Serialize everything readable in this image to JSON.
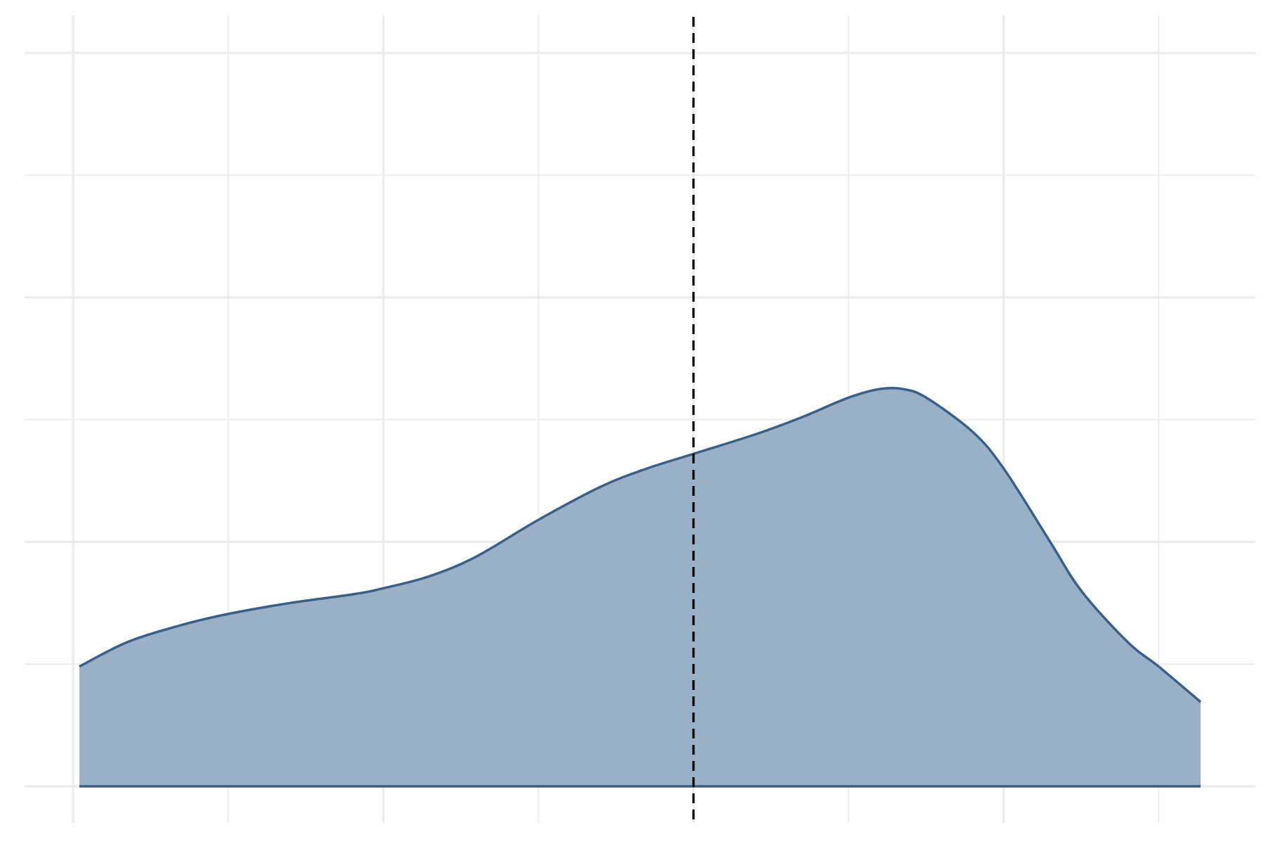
{
  "chart_data": {
    "type": "area",
    "title": "",
    "xlabel": "",
    "ylabel": "",
    "grid": true,
    "xlim": [
      0,
      7.5
    ],
    "ylim": [
      0,
      6.3
    ],
    "x_gridlines_major": [
      0,
      2,
      4,
      6
    ],
    "x_gridlines_minor": [
      1,
      3,
      5,
      7
    ],
    "y_gridlines_major": [
      0,
      2,
      4,
      6
    ],
    "y_gridlines_minor": [
      1,
      3,
      5
    ],
    "reference_line": {
      "x": 4.0,
      "style": "dashed",
      "color": "#000000"
    },
    "colors": {
      "fill": "#9ab0c6",
      "line": "#3a6088",
      "grid": "#ebebeb"
    },
    "series": [
      {
        "x": [
          0.04,
          0.35,
          0.7,
          1.0,
          1.4,
          1.8,
          2.0,
          2.3,
          2.6,
          3.0,
          3.4,
          3.7,
          4.0,
          4.4,
          4.7,
          5.0,
          5.2,
          5.35,
          5.5,
          5.8,
          6.0,
          6.3,
          6.5,
          6.8,
          7.0,
          7.27
        ],
        "y": [
          0.98,
          1.18,
          1.32,
          1.41,
          1.5,
          1.57,
          1.62,
          1.72,
          1.88,
          2.18,
          2.45,
          2.6,
          2.72,
          2.88,
          3.02,
          3.18,
          3.25,
          3.25,
          3.18,
          2.9,
          2.6,
          2.0,
          1.6,
          1.18,
          0.98,
          0.69
        ]
      }
    ]
  }
}
